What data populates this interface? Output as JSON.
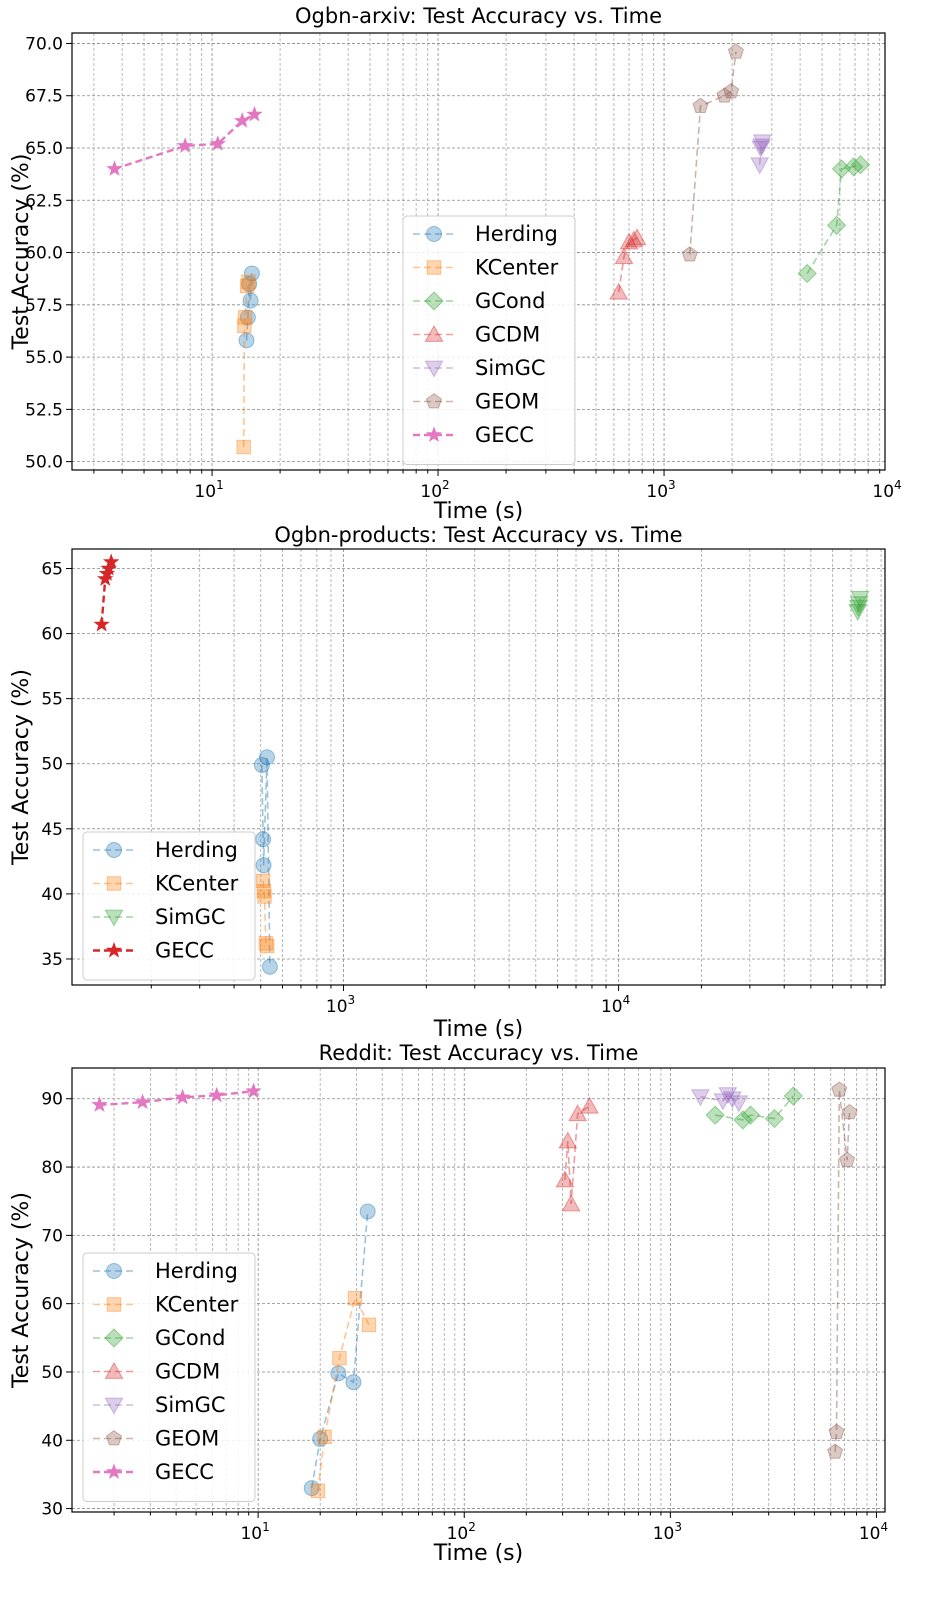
{
  "chart_data": [
    {
      "type": "scatter",
      "title": "Ogbn-arxiv: Test Accuracy vs. Time",
      "xlabel": "Time (s)",
      "ylabel": "Test Accuracy (%)",
      "xscale": "log",
      "xlim": [
        2.4,
        9500
      ],
      "ylim": [
        49.6,
        70.5
      ],
      "xticks": [
        {
          "v": 10,
          "base": "10",
          "exp": "1"
        },
        {
          "v": 100,
          "base": "10",
          "exp": "2"
        },
        {
          "v": 1000,
          "base": "10",
          "exp": "3"
        },
        {
          "v": 10000,
          "base": "10",
          "exp": "4"
        }
      ],
      "yticks": [
        {
          "v": 50,
          "label": "50.0"
        },
        {
          "v": 52.5,
          "label": "52.5"
        },
        {
          "v": 55,
          "label": "55.0"
        },
        {
          "v": 57.5,
          "label": "57.5"
        },
        {
          "v": 60,
          "label": "60.0"
        },
        {
          "v": 62.5,
          "label": "62.5"
        },
        {
          "v": 65,
          "label": "65.0"
        },
        {
          "v": 67.5,
          "label": "67.5"
        },
        {
          "v": 70,
          "label": "70.0"
        }
      ],
      "grid": true,
      "legend_position": "center",
      "series": [
        {
          "name": "Herding",
          "marker": "circle",
          "color": "#1f77b4",
          "x": [
            14.2,
            14.4,
            14.6,
            14.8,
            15.0
          ],
          "y": [
            55.8,
            56.9,
            58.5,
            57.7,
            59.0
          ]
        },
        {
          "name": "KCenter",
          "marker": "square",
          "color": "#ff7f0e",
          "x": [
            13.8,
            13.9,
            14.0,
            14.3,
            14.5
          ],
          "y": [
            50.7,
            56.5,
            56.9,
            58.4,
            58.6
          ]
        },
        {
          "name": "GCond",
          "marker": "diamond",
          "color": "#2ca02c",
          "x": [
            4300,
            5800,
            6100,
            6900,
            7400
          ],
          "y": [
            59.0,
            61.3,
            64.0,
            64.1,
            64.2
          ]
        },
        {
          "name": "GCDM",
          "marker": "triangle-up",
          "color": "#d62728",
          "x": [
            630,
            665,
            700,
            735,
            760
          ],
          "y": [
            58.1,
            59.8,
            60.5,
            60.6,
            60.7
          ]
        },
        {
          "name": "SimGC",
          "marker": "triangle-down",
          "color": "#9467bd",
          "x": [
            2650,
            2680,
            2700,
            2720
          ],
          "y": [
            64.2,
            65.0,
            65.1,
            65.3
          ]
        },
        {
          "name": "GEOM",
          "marker": "pentagon",
          "color": "#8c564b",
          "x": [
            1300,
            1450,
            1850,
            1980,
            2080
          ],
          "y": [
            59.9,
            67.0,
            67.5,
            67.7,
            69.6
          ]
        },
        {
          "name": "GECC",
          "marker": "star",
          "color": "#e377c2",
          "x": [
            3.7,
            7.6,
            10.6,
            13.6,
            15.4
          ],
          "y": [
            64.0,
            65.1,
            65.2,
            66.3,
            66.6
          ]
        }
      ]
    },
    {
      "type": "scatter",
      "title": "Ogbn-products: Test Accuracy vs. Time",
      "xlabel": "Time (s)",
      "ylabel": "Test Accuracy (%)",
      "xscale": "log",
      "xlim": [
        103,
        93000
      ],
      "ylim": [
        33,
        66.5
      ],
      "xticks": [
        {
          "v": 1000,
          "base": "10",
          "exp": "3"
        },
        {
          "v": 10000,
          "base": "10",
          "exp": "4"
        }
      ],
      "yticks": [
        {
          "v": 35,
          "label": "35"
        },
        {
          "v": 40,
          "label": "40"
        },
        {
          "v": 45,
          "label": "45"
        },
        {
          "v": 50,
          "label": "50"
        },
        {
          "v": 55,
          "label": "55"
        },
        {
          "v": 60,
          "label": "60"
        },
        {
          "v": 65,
          "label": "65"
        }
      ],
      "grid": true,
      "legend_position": "lower-left",
      "series": [
        {
          "name": "Herding",
          "marker": "circle",
          "color": "#1f77b4",
          "x": [
            505,
            510,
            512,
            527,
            540
          ],
          "y": [
            49.9,
            44.2,
            42.2,
            50.5,
            34.4
          ]
        },
        {
          "name": "KCenter",
          "marker": "square",
          "color": "#ff7f0e",
          "x": [
            510,
            513,
            516,
            522,
            528
          ],
          "y": [
            41.0,
            40.2,
            39.8,
            36.2,
            36.0
          ]
        },
        {
          "name": "SimGC",
          "marker": "triangle-down",
          "color": "#2ca02c",
          "x": [
            74000,
            74500,
            75000,
            75500
          ],
          "y": [
            61.7,
            62.0,
            62.3,
            62.7
          ]
        },
        {
          "name": "GECC",
          "marker": "star",
          "color": "#d62728",
          "x": [
            132,
            136,
            138,
            140,
            143
          ],
          "y": [
            60.7,
            64.2,
            64.6,
            65.0,
            65.5
          ]
        }
      ]
    },
    {
      "type": "scatter",
      "title": "Reddit: Test Accuracy vs. Time",
      "xlabel": "Time (s)",
      "ylabel": "Test Accuracy (%)",
      "xscale": "log",
      "xlim": [
        1.25,
        11000
      ],
      "ylim": [
        29.5,
        94.5
      ],
      "xticks": [
        {
          "v": 10,
          "base": "10",
          "exp": "1"
        },
        {
          "v": 100,
          "base": "10",
          "exp": "2"
        },
        {
          "v": 1000,
          "base": "10",
          "exp": "3"
        },
        {
          "v": 10000,
          "base": "10",
          "exp": "4"
        }
      ],
      "yticks": [
        {
          "v": 30,
          "label": "30"
        },
        {
          "v": 40,
          "label": "40"
        },
        {
          "v": 50,
          "label": "50"
        },
        {
          "v": 60,
          "label": "60"
        },
        {
          "v": 70,
          "label": "70"
        },
        {
          "v": 80,
          "label": "80"
        },
        {
          "v": 90,
          "label": "90"
        }
      ],
      "grid": true,
      "legend_position": "lower-left",
      "series": [
        {
          "name": "Herding",
          "marker": "circle",
          "color": "#1f77b4",
          "x": [
            18.2,
            20.0,
            24.5,
            29.0,
            34.0
          ],
          "y": [
            33.0,
            40.2,
            49.8,
            48.5,
            73.5
          ]
        },
        {
          "name": "KCenter",
          "marker": "square",
          "color": "#ff7f0e",
          "x": [
            19.5,
            21.0,
            24.8,
            29.5,
            34.5
          ],
          "y": [
            32.6,
            40.5,
            52.0,
            60.8,
            56.9
          ]
        },
        {
          "name": "GCond",
          "marker": "diamond",
          "color": "#2ca02c",
          "x": [
            1650,
            2250,
            2450,
            3200,
            3950
          ],
          "y": [
            87.6,
            86.9,
            87.6,
            87.1,
            90.4
          ]
        },
        {
          "name": "GCDM",
          "marker": "triangle-up",
          "color": "#d62728",
          "x": [
            308,
            318,
            330,
            355,
            405
          ],
          "y": [
            78.1,
            83.8,
            74.6,
            87.8,
            88.9
          ]
        },
        {
          "name": "SimGC",
          "marker": "triangle-down",
          "color": "#9467bd",
          "x": [
            1400,
            1800,
            1900,
            2000,
            2150
          ],
          "y": [
            90.3,
            89.7,
            90.6,
            90.0,
            89.4
          ]
        },
        {
          "name": "GEOM",
          "marker": "pentagon",
          "color": "#8c564b",
          "x": [
            6300,
            6400,
            6600,
            7200,
            7400
          ],
          "y": [
            38.3,
            41.2,
            91.3,
            81.0,
            88.0
          ]
        },
        {
          "name": "GECC",
          "marker": "star",
          "color": "#e377c2",
          "x": [
            1.7,
            2.75,
            4.3,
            6.3,
            9.5
          ],
          "y": [
            89.1,
            89.5,
            90.2,
            90.5,
            91.1
          ]
        }
      ]
    }
  ]
}
